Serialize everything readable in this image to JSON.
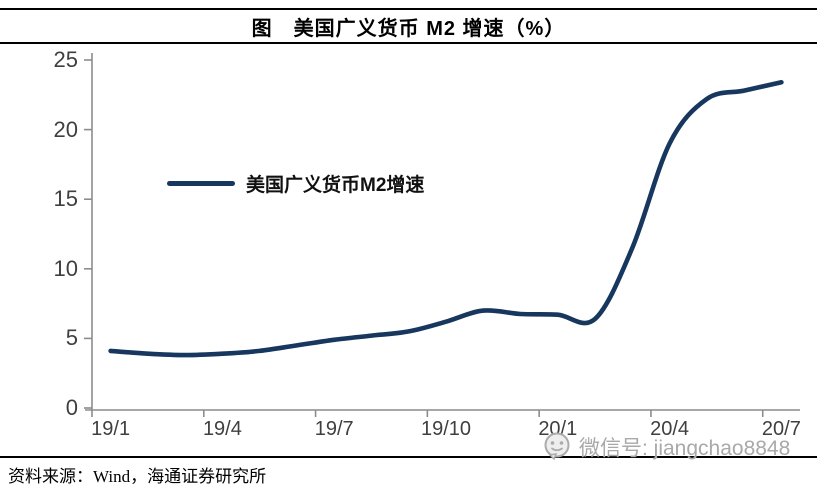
{
  "header": {
    "title": "图　美国广义货币 M2 增速（%）"
  },
  "legend": {
    "label": "美国广义货币M2增速"
  },
  "footer": {
    "source": "资料来源：Wind，海通证券研究所"
  },
  "watermark": {
    "icon": "wechat-icon",
    "text": "微信号: jiangchao8848"
  },
  "colors": {
    "series_line": "#17375E",
    "axis_line": "#8c8c8c",
    "tick_label": "#3f3f3f",
    "rule": "#000000",
    "watermark": "#a9a9a9"
  },
  "chart_data": {
    "type": "line",
    "title": "图　美国广义货币 M2 增速（%）",
    "x": [
      "19/1",
      "19/2",
      "19/3",
      "19/4",
      "19/5",
      "19/6",
      "19/7",
      "19/8",
      "19/9",
      "19/10",
      "19/11",
      "19/12",
      "20/1",
      "20/2",
      "20/3",
      "20/4",
      "20/5",
      "20/6",
      "20/7"
    ],
    "x_tick_labels": [
      "19/1",
      "19/4",
      "19/7",
      "19/10",
      "20/1",
      "20/4",
      "20/7"
    ],
    "x_tick_every_n_months": 3,
    "series": [
      {
        "name": "美国广义货币M2增速",
        "color": "#17375E",
        "values": [
          4.1,
          3.9,
          3.8,
          3.9,
          4.1,
          4.5,
          4.9,
          5.2,
          5.5,
          6.2,
          7.0,
          6.75,
          6.7,
          6.4,
          11.5,
          19.0,
          22.2,
          22.8,
          23.4
        ]
      }
    ],
    "xlabel": "",
    "ylabel": "",
    "ylim": [
      0,
      25
    ],
    "y_ticks": [
      0,
      5,
      10,
      15,
      20,
      25
    ],
    "grid": false,
    "smooth": true,
    "legend_position": "inside-upper-left"
  }
}
